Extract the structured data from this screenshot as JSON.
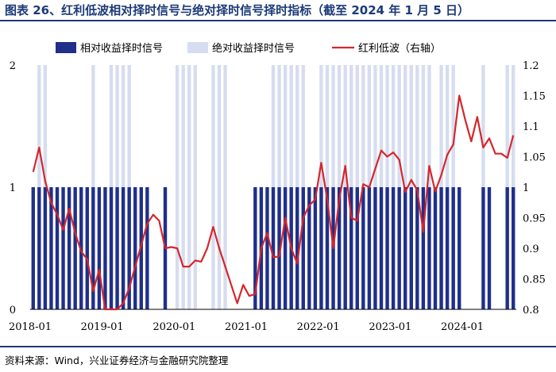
{
  "title": "图表 26、红利低波相对择时信号与绝对择时信号择时指标（截至 2024 年 1 月 5 日）",
  "source": "资料来源：Wind，兴业证券经济与金融研究院整理",
  "colors": {
    "relative": "#1f2f8a",
    "absolute": "#d7ddf0",
    "line": "#d6262b",
    "header": "#1c3a78"
  },
  "chart_data": {
    "type": "bar",
    "legend": [
      "相对收益择时信号",
      "绝对收益择时信号",
      "红利低波（右轴）"
    ],
    "legend_placement": "top",
    "x_tick_labels": [
      "2018-01",
      "2019-01",
      "2020-01",
      "2021-01",
      "2022-01",
      "2023-01",
      "2024-01"
    ],
    "y_left": {
      "ticks": [
        "0",
        "1",
        "2"
      ],
      "lim": [
        0,
        2
      ]
    },
    "y_right": {
      "ticks": [
        "0.8",
        "0.85",
        "0.9",
        "0.95",
        "1",
        "1.05",
        "1.1",
        "1.15",
        "1.2"
      ],
      "lim": [
        0.8,
        1.2
      ]
    },
    "series": [
      {
        "name": "相对收益择时信号",
        "kind": "bar",
        "axis": "left",
        "values": [
          1,
          1,
          1,
          1,
          1,
          1,
          1,
          1,
          1,
          1,
          1,
          1,
          1,
          1,
          1,
          1,
          1,
          1,
          1,
          1,
          0,
          0,
          1,
          0,
          0,
          0,
          0,
          0,
          0,
          0,
          0,
          0,
          0,
          0,
          0,
          0,
          0,
          1,
          1,
          1,
          1,
          1,
          1,
          1,
          1,
          1,
          1,
          1,
          1,
          1,
          1,
          1,
          1,
          1,
          1,
          1,
          1,
          1,
          1,
          1,
          1,
          1,
          1,
          1,
          1,
          1,
          1,
          1,
          1,
          1,
          1,
          1,
          0,
          0,
          0,
          1,
          1,
          0,
          0,
          1,
          1
        ]
      },
      {
        "name": "绝对收益择时信号",
        "kind": "bar",
        "axis": "left",
        "values": [
          0,
          1,
          1,
          0,
          0,
          0,
          0,
          0,
          0,
          0,
          1,
          0,
          0,
          1,
          1,
          1,
          1,
          0,
          0,
          0,
          0,
          0,
          0,
          0,
          1,
          1,
          1,
          1,
          0,
          0,
          1,
          1,
          1,
          0,
          0,
          0,
          0,
          0,
          0,
          0,
          1,
          1,
          1,
          1,
          1,
          1,
          0,
          0,
          1,
          1,
          1,
          1,
          1,
          1,
          1,
          1,
          1,
          1,
          1,
          1,
          1,
          1,
          1,
          1,
          1,
          1,
          1,
          0,
          1,
          1,
          1,
          0,
          0,
          0,
          0,
          1,
          0,
          0,
          0,
          1,
          1
        ]
      },
      {
        "name": "红利低波（右轴）",
        "kind": "line",
        "axis": "right",
        "values": [
          1.025,
          1.065,
          1.01,
          0.975,
          0.955,
          0.93,
          0.965,
          0.925,
          0.895,
          0.882,
          0.83,
          0.865,
          0.8,
          0.8,
          0.8,
          0.81,
          0.835,
          0.87,
          0.905,
          0.94,
          0.955,
          0.945,
          0.9,
          0.902,
          0.9,
          0.87,
          0.87,
          0.88,
          0.878,
          0.9,
          0.935,
          0.9,
          0.87,
          0.84,
          0.81,
          0.84,
          0.822,
          0.825,
          0.9,
          0.925,
          0.885,
          0.887,
          0.95,
          0.9,
          0.875,
          0.95,
          0.97,
          0.98,
          1.04,
          0.98,
          0.9,
          0.98,
          1.035,
          0.95,
          0.945,
          1.005,
          1.0,
          1.03,
          1.06,
          1.05,
          1.057,
          1.045,
          0.992,
          1.012,
          0.995,
          0.927,
          1.035,
          0.993,
          1.02,
          1.053,
          1.07,
          1.15,
          1.11,
          1.075,
          1.115,
          1.065,
          1.08,
          1.055,
          1.055,
          1.048,
          1.085
        ]
      }
    ]
  }
}
